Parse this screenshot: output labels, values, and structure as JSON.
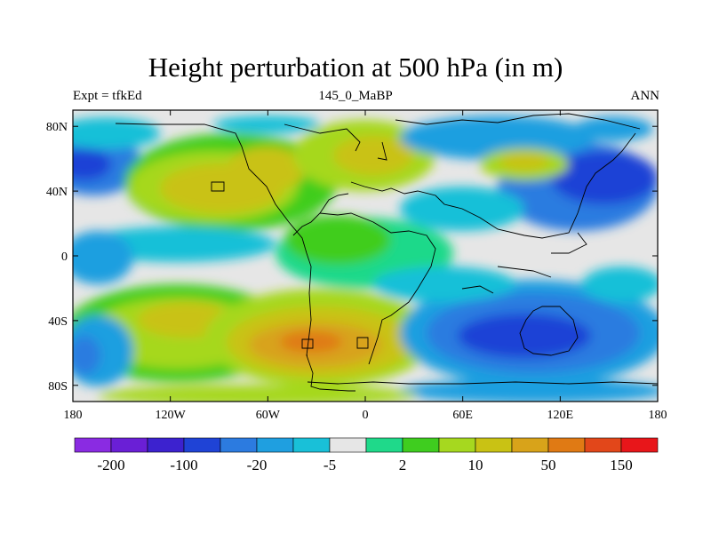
{
  "title": "Height perturbation at 500 hPa (in m)",
  "left_string": "Expt = tfkEd",
  "center_string": "145_0_MaBP",
  "right_string": "ANN",
  "map": {
    "lon_range": [
      -180,
      180
    ],
    "lat_range": [
      -90,
      90
    ],
    "x_ticks": [
      {
        "value": -180,
        "label": "180"
      },
      {
        "value": -120,
        "label": "120W"
      },
      {
        "value": -60,
        "label": "60W"
      },
      {
        "value": 0,
        "label": "0"
      },
      {
        "value": 60,
        "label": "60E"
      },
      {
        "value": 120,
        "label": "120E"
      },
      {
        "value": 180,
        "label": "180"
      }
    ],
    "y_ticks": [
      {
        "value": 80,
        "label": "80N"
      },
      {
        "value": 40,
        "label": "40N"
      },
      {
        "value": 0,
        "label": "0"
      },
      {
        "value": -40,
        "label": "40S"
      },
      {
        "value": -80,
        "label": "80S"
      }
    ]
  },
  "colorbar": {
    "colors": [
      "#8a2be2",
      "#6a1fd6",
      "#3c22cf",
      "#1f43d6",
      "#2c7be0",
      "#1f9fe0",
      "#19c0d8",
      "#e6e6e6",
      "#1fd98a",
      "#3fcd1f",
      "#a6d81f",
      "#c9c214",
      "#d8a31a",
      "#e07a14",
      "#e2471a",
      "#e8161a"
    ],
    "labels": [
      {
        "boundary": 1,
        "text": "-200"
      },
      {
        "boundary": 3,
        "text": "-100"
      },
      {
        "boundary": 5,
        "text": "-20"
      },
      {
        "boundary": 7,
        "text": "-5"
      },
      {
        "boundary": 9,
        "text": "2"
      },
      {
        "boundary": 11,
        "text": "10"
      },
      {
        "boundary": 13,
        "text": "50"
      },
      {
        "boundary": 15,
        "text": "150"
      }
    ]
  },
  "field_colors": {
    "background": "#e6e6e6",
    "cyan": "#19c0d8",
    "light_blue": "#1f9fe0",
    "blue": "#2c7be0",
    "dark_blue": "#1f43d6",
    "deep_blue": "#3c22cf",
    "teal": "#1fd98a",
    "green": "#3fcd1f",
    "lime": "#a6d81f",
    "yellow": "#c9c214",
    "orange": "#d8a31a",
    "dark_orange": "#e07a14"
  }
}
